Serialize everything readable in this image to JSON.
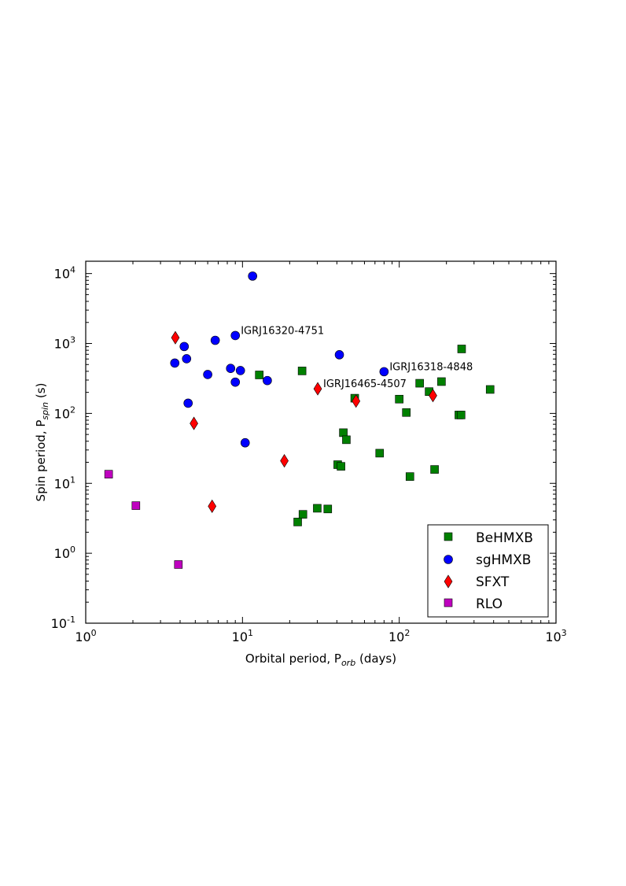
{
  "chart_data": {
    "type": "scatter",
    "xscale": "log",
    "yscale": "log",
    "xlim": [
      1,
      1000
    ],
    "ylim": [
      0.1,
      15000
    ],
    "xlabel": {
      "main": "Orbital period, P",
      "sub": "orb",
      "tail": " (days)"
    },
    "ylabel": {
      "main": "Spin period, P",
      "sub": "spin",
      "tail": "  (s)"
    },
    "xticks": [
      {
        "base": "10",
        "exp": "0",
        "value": 1
      },
      {
        "base": "10",
        "exp": "1",
        "value": 10
      },
      {
        "base": "10",
        "exp": "2",
        "value": 100
      },
      {
        "base": "10",
        "exp": "3",
        "value": 1000
      }
    ],
    "yticks": [
      {
        "base": "10",
        "exp": "-1",
        "value": 0.1
      },
      {
        "base": "10",
        "exp": "0",
        "value": 1
      },
      {
        "base": "10",
        "exp": "1",
        "value": 10
      },
      {
        "base": "10",
        "exp": "2",
        "value": 100
      },
      {
        "base": "10",
        "exp": "3",
        "value": 1000
      },
      {
        "base": "10",
        "exp": "4",
        "value": 10000
      }
    ],
    "grid": false,
    "legend_position": "lower-right",
    "series": [
      {
        "name": "BeHMXB",
        "marker": "square",
        "color": "#008000",
        "points": [
          {
            "x": 12.8,
            "y": 355
          },
          {
            "x": 24,
            "y": 405
          },
          {
            "x": 22.5,
            "y": 2.8
          },
          {
            "x": 24.3,
            "y": 3.6
          },
          {
            "x": 30,
            "y": 4.4
          },
          {
            "x": 35,
            "y": 4.3
          },
          {
            "x": 40.5,
            "y": 18.5
          },
          {
            "x": 42.5,
            "y": 17.5
          },
          {
            "x": 44,
            "y": 53
          },
          {
            "x": 46,
            "y": 42
          },
          {
            "x": 52,
            "y": 165
          },
          {
            "x": 75,
            "y": 27
          },
          {
            "x": 100,
            "y": 160
          },
          {
            "x": 111,
            "y": 103
          },
          {
            "x": 117,
            "y": 12.5
          },
          {
            "x": 135,
            "y": 270
          },
          {
            "x": 155,
            "y": 205
          },
          {
            "x": 168,
            "y": 15.8
          },
          {
            "x": 186,
            "y": 285
          },
          {
            "x": 240,
            "y": 95
          },
          {
            "x": 248,
            "y": 95
          },
          {
            "x": 250,
            "y": 835
          },
          {
            "x": 380,
            "y": 220
          }
        ]
      },
      {
        "name": "sgHMXB",
        "marker": "circle",
        "color": "#0000ff",
        "points": [
          {
            "x": 3.7,
            "y": 525
          },
          {
            "x": 4.25,
            "y": 905
          },
          {
            "x": 4.4,
            "y": 605
          },
          {
            "x": 4.5,
            "y": 140
          },
          {
            "x": 6.0,
            "y": 360
          },
          {
            "x": 6.7,
            "y": 1110
          },
          {
            "x": 8.4,
            "y": 440
          },
          {
            "x": 9.0,
            "y": 1300
          },
          {
            "x": 9.0,
            "y": 280
          },
          {
            "x": 9.7,
            "y": 410
          },
          {
            "x": 10.4,
            "y": 38
          },
          {
            "x": 11.6,
            "y": 9200
          },
          {
            "x": 14.4,
            "y": 295
          },
          {
            "x": 41.5,
            "y": 690
          },
          {
            "x": 80,
            "y": 395
          }
        ]
      },
      {
        "name": "SFXT",
        "marker": "diamond",
        "color": "#ff0000",
        "points": [
          {
            "x": 3.73,
            "y": 1210
          },
          {
            "x": 4.9,
            "y": 72
          },
          {
            "x": 6.4,
            "y": 4.7
          },
          {
            "x": 18.5,
            "y": 21
          },
          {
            "x": 30.2,
            "y": 225
          },
          {
            "x": 53,
            "y": 150
          },
          {
            "x": 164,
            "y": 180
          }
        ]
      },
      {
        "name": "RLO",
        "marker": "square",
        "color": "#bf00bf",
        "points": [
          {
            "x": 1.4,
            "y": 13.5
          },
          {
            "x": 2.09,
            "y": 4.8
          },
          {
            "x": 3.9,
            "y": 0.69
          }
        ]
      }
    ],
    "annotations": [
      {
        "text": "IGRJ16320-4751",
        "x": 9.0,
        "y": 1300
      },
      {
        "text": "IGRJ16318-4848",
        "x": 80,
        "y": 395
      },
      {
        "text": "IGRJ16465-4507",
        "x": 30.2,
        "y": 225
      }
    ]
  }
}
